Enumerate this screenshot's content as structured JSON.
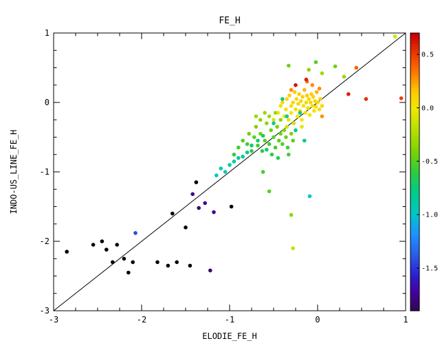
{
  "figure": {
    "background": "#ffffff",
    "frame_color": "#000000"
  },
  "chart_data": {
    "type": "scatter",
    "title": "FE_H",
    "xlabel": "ELODIE_FE_H",
    "ylabel": "INDO-US_LINE_FE_H",
    "xlim": [
      -3,
      1
    ],
    "ylim": [
      -3,
      1
    ],
    "x_ticks": [
      -3,
      -2,
      -1,
      0,
      1
    ],
    "y_ticks": [
      -3,
      -2,
      -1,
      0,
      1
    ],
    "minor_tick_step": 0.25,
    "grid": false,
    "legend": "colorbar-right",
    "identity_line": {
      "x1": -3,
      "y1": -3,
      "x2": 1,
      "y2": 1,
      "color": "#000000"
    },
    "marker": {
      "shape": "circle",
      "radius": 2.8
    },
    "colorbar": {
      "vmin": -1.9,
      "vmax": 0.7,
      "tick_values": [
        0.5,
        0.0,
        -0.5,
        -1.0,
        -1.5
      ],
      "tick_labels": [
        "0.5",
        "0.0",
        "-0.5",
        "-1.0",
        "-1.5"
      ],
      "below_min_color": "#000000",
      "stops": [
        {
          "v": -1.9,
          "c": "#2e0854"
        },
        {
          "v": -1.74,
          "c": "#47009e"
        },
        {
          "v": -1.58,
          "c": "#2a1fd0"
        },
        {
          "v": -1.4,
          "c": "#2b59e8"
        },
        {
          "v": -1.2,
          "c": "#1e90ff"
        },
        {
          "v": -1.0,
          "c": "#00c8c8"
        },
        {
          "v": -0.8,
          "c": "#00cc88"
        },
        {
          "v": -0.6,
          "c": "#2ecc40"
        },
        {
          "v": -0.4,
          "c": "#7fd400"
        },
        {
          "v": -0.2,
          "c": "#b8e000"
        },
        {
          "v": 0.0,
          "c": "#f0e800"
        },
        {
          "v": 0.15,
          "c": "#ffcc00"
        },
        {
          "v": 0.3,
          "c": "#ff8800"
        },
        {
          "v": 0.5,
          "c": "#f03c00"
        },
        {
          "v": 0.7,
          "c": "#cc0000"
        }
      ]
    },
    "points": [
      [
        -0.45,
        -0.15,
        0.0
      ],
      [
        -0.42,
        -0.05,
        0.05
      ],
      [
        -0.4,
        0.0,
        0.1
      ],
      [
        -0.38,
        -0.2,
        0.0
      ],
      [
        -0.36,
        -0.1,
        0.05
      ],
      [
        -0.35,
        0.05,
        0.1
      ],
      [
        -0.33,
        -0.25,
        -0.05
      ],
      [
        -0.32,
        0.1,
        0.15
      ],
      [
        -0.3,
        -0.05,
        0.05
      ],
      [
        -0.3,
        -0.15,
        0.0
      ],
      [
        -0.28,
        0.0,
        0.1
      ],
      [
        -0.27,
        -0.3,
        -0.1
      ],
      [
        -0.26,
        0.15,
        0.15
      ],
      [
        -0.25,
        -0.1,
        0.05
      ],
      [
        -0.24,
        0.05,
        0.1
      ],
      [
        -0.23,
        -0.2,
        0.0
      ],
      [
        -0.22,
        -0.02,
        0.1
      ],
      [
        -0.21,
        0.12,
        0.15
      ],
      [
        -0.2,
        -0.12,
        0.05
      ],
      [
        -0.19,
        0.02,
        0.1
      ],
      [
        -0.18,
        -0.25,
        0.0
      ],
      [
        -0.17,
        0.08,
        0.15
      ],
      [
        -0.16,
        -0.05,
        0.05
      ],
      [
        -0.15,
        0.18,
        0.2
      ],
      [
        -0.14,
        -0.15,
        0.05
      ],
      [
        -0.13,
        0.0,
        0.1
      ],
      [
        -0.12,
        0.1,
        0.15
      ],
      [
        -0.11,
        -0.08,
        0.05
      ],
      [
        -0.1,
        0.05,
        0.1
      ],
      [
        -0.09,
        -0.18,
        0.0
      ],
      [
        -0.08,
        0.0,
        0.1
      ],
      [
        -0.07,
        0.12,
        0.15
      ],
      [
        -0.06,
        -0.05,
        0.05
      ],
      [
        -0.05,
        0.08,
        0.1
      ],
      [
        -0.04,
        -0.12,
        0.05
      ],
      [
        -0.03,
        0.02,
        0.1
      ],
      [
        -0.02,
        -0.06,
        0.05
      ],
      [
        -0.01,
        0.15,
        0.2
      ],
      [
        0.0,
        0.0,
        0.1
      ],
      [
        0.02,
        -0.1,
        0.05
      ],
      [
        0.03,
        0.05,
        0.15
      ],
      [
        0.05,
        -0.05,
        0.1
      ],
      [
        -0.35,
        -0.35,
        -0.1
      ],
      [
        -0.18,
        -0.35,
        -0.05
      ],
      [
        -0.5,
        -0.25,
        -0.1
      ],
      [
        -0.85,
        -0.55,
        -0.5
      ],
      [
        -0.8,
        -0.6,
        -0.55
      ],
      [
        -0.78,
        -0.45,
        -0.45
      ],
      [
        -0.75,
        -0.7,
        -0.6
      ],
      [
        -0.72,
        -0.5,
        -0.5
      ],
      [
        -0.7,
        -0.35,
        -0.4
      ],
      [
        -0.68,
        -0.62,
        -0.55
      ],
      [
        -0.65,
        -0.45,
        -0.45
      ],
      [
        -0.63,
        -0.7,
        -0.6
      ],
      [
        -0.6,
        -0.55,
        -0.5
      ],
      [
        -0.58,
        -0.3,
        -0.35
      ],
      [
        -0.55,
        -0.6,
        -0.55
      ],
      [
        -0.53,
        -0.4,
        -0.45
      ],
      [
        -0.5,
        -0.5,
        -0.5
      ],
      [
        -0.48,
        -0.65,
        -0.55
      ],
      [
        -0.46,
        -0.35,
        -0.4
      ],
      [
        -0.44,
        -0.55,
        -0.5
      ],
      [
        -0.42,
        -0.45,
        -0.45
      ],
      [
        -0.4,
        -0.6,
        -0.5
      ],
      [
        -0.38,
        -0.4,
        -0.4
      ],
      [
        -0.55,
        -0.2,
        -0.3
      ],
      [
        -0.6,
        -0.15,
        -0.3
      ],
      [
        -0.65,
        -0.25,
        -0.35
      ],
      [
        -0.7,
        -0.2,
        -0.3
      ],
      [
        -0.48,
        -0.15,
        -0.3
      ],
      [
        -0.52,
        -0.75,
        -0.6
      ],
      [
        -0.45,
        -0.8,
        -0.65
      ],
      [
        -0.42,
        -0.25,
        -0.35
      ],
      [
        -0.36,
        -0.5,
        -0.45
      ],
      [
        -0.34,
        -0.65,
        -0.55
      ],
      [
        -0.3,
        -0.45,
        -0.4
      ],
      [
        -0.28,
        -0.55,
        -0.5
      ],
      [
        -0.9,
        -0.65,
        -0.55
      ],
      [
        -0.95,
        -0.75,
        -0.6
      ],
      [
        -0.33,
        -0.75,
        -0.55
      ],
      [
        -1.15,
        -1.05,
        -1.0
      ],
      [
        -1.1,
        -0.95,
        -0.95
      ],
      [
        -1.05,
        -1.0,
        -0.95
      ],
      [
        -1.0,
        -0.9,
        -0.9
      ],
      [
        -0.95,
        -0.85,
        -0.85
      ],
      [
        -0.9,
        -0.8,
        -0.85
      ],
      [
        -0.85,
        -0.78,
        -0.8
      ],
      [
        -0.8,
        -0.72,
        -0.8
      ],
      [
        -0.75,
        -0.62,
        -0.75
      ],
      [
        -0.68,
        -0.55,
        -0.72
      ],
      [
        -0.62,
        -0.48,
        -0.7
      ],
      [
        -0.58,
        -0.68,
        -0.75
      ],
      [
        -0.5,
        -0.3,
        -0.85
      ],
      [
        -0.35,
        -0.2,
        -0.9
      ],
      [
        -0.25,
        -0.4,
        -0.8
      ],
      [
        -0.15,
        -0.55,
        -0.85
      ],
      [
        -0.4,
        0.05,
        -0.8
      ],
      [
        -0.2,
        -0.15,
        -0.75
      ],
      [
        -0.09,
        -1.35,
        -1.0
      ],
      [
        -0.3,
        0.18,
        0.3
      ],
      [
        -0.12,
        0.3,
        0.35
      ],
      [
        0.02,
        0.2,
        0.3
      ],
      [
        0.05,
        -0.2,
        0.28
      ],
      [
        -0.25,
        0.25,
        0.65
      ],
      [
        -0.13,
        0.33,
        0.6
      ],
      [
        0.35,
        0.12,
        0.6
      ],
      [
        0.55,
        0.05,
        0.55
      ],
      [
        0.95,
        0.06,
        0.5
      ],
      [
        0.44,
        0.5,
        0.4
      ],
      [
        -0.06,
        0.25,
        0.3
      ],
      [
        -0.33,
        0.53,
        -0.45
      ],
      [
        -0.02,
        0.58,
        -0.5
      ],
      [
        0.2,
        0.52,
        -0.45
      ],
      [
        0.05,
        0.42,
        -0.3
      ],
      [
        -0.1,
        0.47,
        -0.35
      ],
      [
        0.3,
        0.37,
        -0.3
      ],
      [
        0.88,
        0.95,
        -0.1
      ],
      [
        -0.55,
        -1.28,
        -0.5
      ],
      [
        -0.3,
        -1.62,
        -0.35
      ],
      [
        -0.28,
        -2.1,
        -0.15
      ],
      [
        -0.62,
        -1.0,
        -0.55
      ],
      [
        -1.42,
        -1.32,
        -1.8
      ],
      [
        -1.35,
        -1.52,
        -1.85
      ],
      [
        -1.28,
        -1.45,
        -1.78
      ],
      [
        -1.22,
        -2.42,
        -1.85
      ],
      [
        -1.18,
        -1.58,
        -1.75
      ],
      [
        -2.07,
        -1.88,
        -1.45
      ],
      [
        -2.85,
        -2.15,
        -2.5
      ],
      [
        -2.55,
        -2.05,
        -2.5
      ],
      [
        -2.45,
        -2.0,
        -2.5
      ],
      [
        -2.4,
        -2.12,
        -2.5
      ],
      [
        -2.33,
        -2.3,
        -2.5
      ],
      [
        -2.28,
        -2.05,
        -2.5
      ],
      [
        -2.2,
        -2.25,
        -2.5
      ],
      [
        -2.15,
        -2.45,
        -2.5
      ],
      [
        -2.1,
        -2.3,
        -2.5
      ],
      [
        -1.82,
        -2.3,
        -2.5
      ],
      [
        -1.7,
        -2.35,
        -2.5
      ],
      [
        -1.6,
        -2.3,
        -2.5
      ],
      [
        -1.45,
        -2.35,
        -2.5
      ],
      [
        -1.65,
        -1.6,
        -2.5
      ],
      [
        -1.5,
        -1.8,
        -2.5
      ],
      [
        -1.38,
        -1.15,
        -2.5
      ],
      [
        -0.98,
        -1.5,
        -2.5
      ]
    ]
  }
}
